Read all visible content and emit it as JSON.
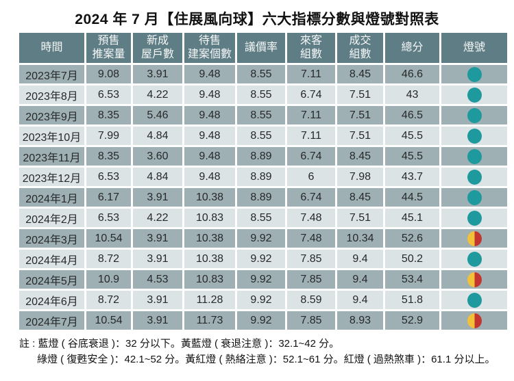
{
  "chart_data": {
    "type": "table",
    "title": "2024 年 7 月【住展風向球】六大指標分數與燈號對照表",
    "columns": [
      "時間",
      "預售\n推案量",
      "新成\n屋戶數",
      "待售\n建案個數",
      "議價率",
      "來客\n組數",
      "成交\n組數",
      "總分",
      "燈號"
    ],
    "rows": [
      {
        "cells": [
          "2023年7月",
          "9.08",
          "3.91",
          "9.48",
          "8.55",
          "7.11",
          "8.45",
          "46.6"
        ],
        "light": "green",
        "light_label": "綠燈"
      },
      {
        "cells": [
          "2023年8月",
          "6.53",
          "4.22",
          "9.48",
          "8.55",
          "6.74",
          "7.51",
          "43"
        ],
        "light": "green",
        "light_label": "綠燈"
      },
      {
        "cells": [
          "2023年9月",
          "8.35",
          "5.46",
          "9.48",
          "8.55",
          "7.11",
          "7.51",
          "46.5"
        ],
        "light": "green",
        "light_label": "綠燈"
      },
      {
        "cells": [
          "2023年10月",
          "7.99",
          "4.84",
          "9.48",
          "8.55",
          "7.11",
          "7.51",
          "45.5"
        ],
        "light": "green",
        "light_label": "綠燈"
      },
      {
        "cells": [
          "2023年11月",
          "8.35",
          "3.60",
          "9.48",
          "8.89",
          "6.74",
          "8.45",
          "45.5"
        ],
        "light": "green",
        "light_label": "綠燈"
      },
      {
        "cells": [
          "2023年12月",
          "6.53",
          "4.84",
          "9.48",
          "8.89",
          "6",
          "7.98",
          "43.7"
        ],
        "light": "green",
        "light_label": "綠燈"
      },
      {
        "cells": [
          "2024年1月",
          "6.17",
          "3.91",
          "10.38",
          "8.89",
          "6.74",
          "8.45",
          "44.5"
        ],
        "light": "green",
        "light_label": "綠燈"
      },
      {
        "cells": [
          "2024年2月",
          "6.53",
          "4.22",
          "10.83",
          "8.55",
          "7.48",
          "7.51",
          "45.1"
        ],
        "light": "green",
        "light_label": "綠燈"
      },
      {
        "cells": [
          "2024年3月",
          "10.54",
          "3.91",
          "10.38",
          "9.92",
          "7.48",
          "10.34",
          "52.6"
        ],
        "light": "yellow_red",
        "light_label": "黃紅燈"
      },
      {
        "cells": [
          "2024年4月",
          "8.72",
          "3.91",
          "10.38",
          "9.92",
          "7.85",
          "9.4",
          "50.2"
        ],
        "light": "green",
        "light_label": "綠燈"
      },
      {
        "cells": [
          "2024年5月",
          "10.9",
          "4.53",
          "10.83",
          "9.92",
          "7.85",
          "9.4",
          "53.4"
        ],
        "light": "yellow_red",
        "light_label": "黃紅燈"
      },
      {
        "cells": [
          "2024年6月",
          "8.72",
          "3.91",
          "11.28",
          "9.92",
          "8.59",
          "9.4",
          "51.8"
        ],
        "light": "green",
        "light_label": "綠燈"
      },
      {
        "cells": [
          "2024年7月",
          "10.54",
          "3.91",
          "11.73",
          "9.92",
          "7.85",
          "8.93",
          "52.9"
        ],
        "light": "yellow_red",
        "light_label": "黃紅燈"
      }
    ]
  },
  "notes": {
    "line1": "註 : 藍燈 ( 谷底衰退 )：32 分以下。黃藍燈 ( 衰退注意 )：32.1~42 分。",
    "line2": "綠燈 ( 復甦安全 )：42.1~52 分。黃紅燈 ( 熱絡注意 )：52.1~61 分。紅燈 ( 過熱煞車 )：61.1 分以上。"
  },
  "colors": {
    "header_bg": "#5e7d84",
    "row_dark": "#9fb0b4",
    "row_light": "#dce3e5",
    "green_light": "#1e999e",
    "yellow_light": "#f0c139",
    "red_light": "#c2362f"
  }
}
